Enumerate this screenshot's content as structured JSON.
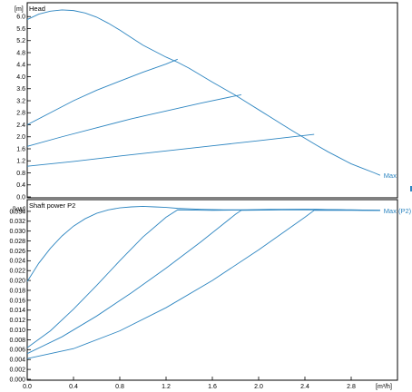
{
  "chart_data": [
    {
      "type": "line",
      "title": "Head",
      "ylabel": "[m]",
      "xlabel": "",
      "xlim": [
        0,
        3.2
      ],
      "ylim": [
        0,
        6.4
      ],
      "grid": false,
      "yticks": [
        "0.0",
        "0.4",
        "0.8",
        "1.2",
        "1.6",
        "2.0",
        "2.4",
        "2.8",
        "3.2",
        "3.6",
        "4.0",
        "4.4",
        "4.8",
        "5.2",
        "5.6",
        "6.0"
      ],
      "series": [
        {
          "x": [
            0,
            0.1,
            0.2,
            0.3,
            0.4,
            0.5,
            0.6,
            0.7,
            0.8,
            0.9,
            1.0,
            1.1,
            1.2,
            1.3,
            1.4,
            1.5,
            1.6,
            1.7,
            1.8,
            1.9,
            2.0,
            2.1,
            2.2,
            2.3,
            2.4,
            2.5,
            2.6,
            2.7,
            2.8,
            2.9,
            3.0,
            3.05
          ],
          "y": [
            5.9,
            6.08,
            6.18,
            6.22,
            6.2,
            6.12,
            5.98,
            5.78,
            5.55,
            5.3,
            5.05,
            4.85,
            4.65,
            4.48,
            4.28,
            4.05,
            3.82,
            3.6,
            3.38,
            3.14,
            2.9,
            2.66,
            2.42,
            2.18,
            1.95,
            1.72,
            1.5,
            1.3,
            1.1,
            0.95,
            0.8,
            0.72
          ]
        },
        {
          "x": [
            0,
            0.2,
            0.4,
            0.6,
            0.8,
            1.0,
            1.2,
            1.3
          ],
          "y": [
            2.4,
            2.8,
            3.2,
            3.55,
            3.85,
            4.15,
            4.42,
            4.58
          ]
        },
        {
          "x": [
            0,
            0.3,
            0.6,
            0.9,
            1.2,
            1.5,
            1.85
          ],
          "y": [
            1.68,
            2.0,
            2.3,
            2.6,
            2.86,
            3.12,
            3.4
          ]
        },
        {
          "x": [
            0,
            0.4,
            0.8,
            1.2,
            1.6,
            2.0,
            2.48
          ],
          "y": [
            1.02,
            1.18,
            1.36,
            1.53,
            1.7,
            1.87,
            2.08
          ]
        }
      ],
      "annotations": [
        {
          "text": "Max",
          "x": 3.08,
          "y": 0.72
        }
      ]
    },
    {
      "type": "line",
      "title": "Shaft power P2",
      "ylabel": "[kW]",
      "xlabel": "[m³/h]",
      "xlim": [
        0,
        3.2
      ],
      "ylim": [
        0,
        0.036
      ],
      "grid": false,
      "yticks": [
        "0.000",
        "0.002",
        "0.004",
        "0.006",
        "0.008",
        "0.010",
        "0.012",
        "0.014",
        "0.016",
        "0.018",
        "0.020",
        "0.022",
        "0.024",
        "0.026",
        "0.028",
        "0.030",
        "0.032",
        "0.034"
      ],
      "xticks": [
        "0.0",
        "0.4",
        "0.8",
        "1.2",
        "1.6",
        "2.0",
        "2.4",
        "2.8"
      ],
      "series": [
        {
          "x": [
            0,
            0.1,
            0.2,
            0.3,
            0.4,
            0.5,
            0.6,
            0.7,
            0.8,
            0.9,
            1.0,
            1.1,
            1.2,
            1.3,
            1.5,
            1.7,
            1.9,
            2.1,
            2.3,
            2.5,
            2.7,
            2.9,
            3.05
          ],
          "y": [
            0.0198,
            0.0235,
            0.0265,
            0.029,
            0.031,
            0.0325,
            0.0336,
            0.0343,
            0.0347,
            0.0349,
            0.035,
            0.0349,
            0.0348,
            0.0346,
            0.0344,
            0.0343,
            0.0343,
            0.0344,
            0.0344,
            0.0344,
            0.0343,
            0.0342,
            0.0342
          ]
        },
        {
          "x": [
            0,
            0.2,
            0.4,
            0.6,
            0.8,
            1.0,
            1.2,
            1.3,
            1.6,
            2.0,
            2.4,
            2.8,
            3.05
          ],
          "y": [
            0.0064,
            0.0098,
            0.0142,
            0.019,
            0.024,
            0.0288,
            0.0328,
            0.0343,
            0.0342,
            0.0343,
            0.0344,
            0.0343,
            0.0342
          ]
        },
        {
          "x": [
            0,
            0.3,
            0.6,
            0.9,
            1.2,
            1.5,
            1.8,
            1.85,
            2.2,
            2.6,
            3.05
          ],
          "y": [
            0.0052,
            0.0086,
            0.0128,
            0.0175,
            0.0225,
            0.0278,
            0.0334,
            0.0342,
            0.0343,
            0.0343,
            0.0342
          ]
        },
        {
          "x": [
            0,
            0.4,
            0.8,
            1.2,
            1.6,
            2.0,
            2.4,
            2.48,
            2.8,
            3.05
          ],
          "y": [
            0.0042,
            0.0062,
            0.0098,
            0.0145,
            0.02,
            0.0262,
            0.0328,
            0.0342,
            0.0342,
            0.0342
          ]
        }
      ],
      "annotations": [
        {
          "text": "Max (P2)",
          "x": 3.08,
          "y": 0.0342
        }
      ]
    }
  ]
}
